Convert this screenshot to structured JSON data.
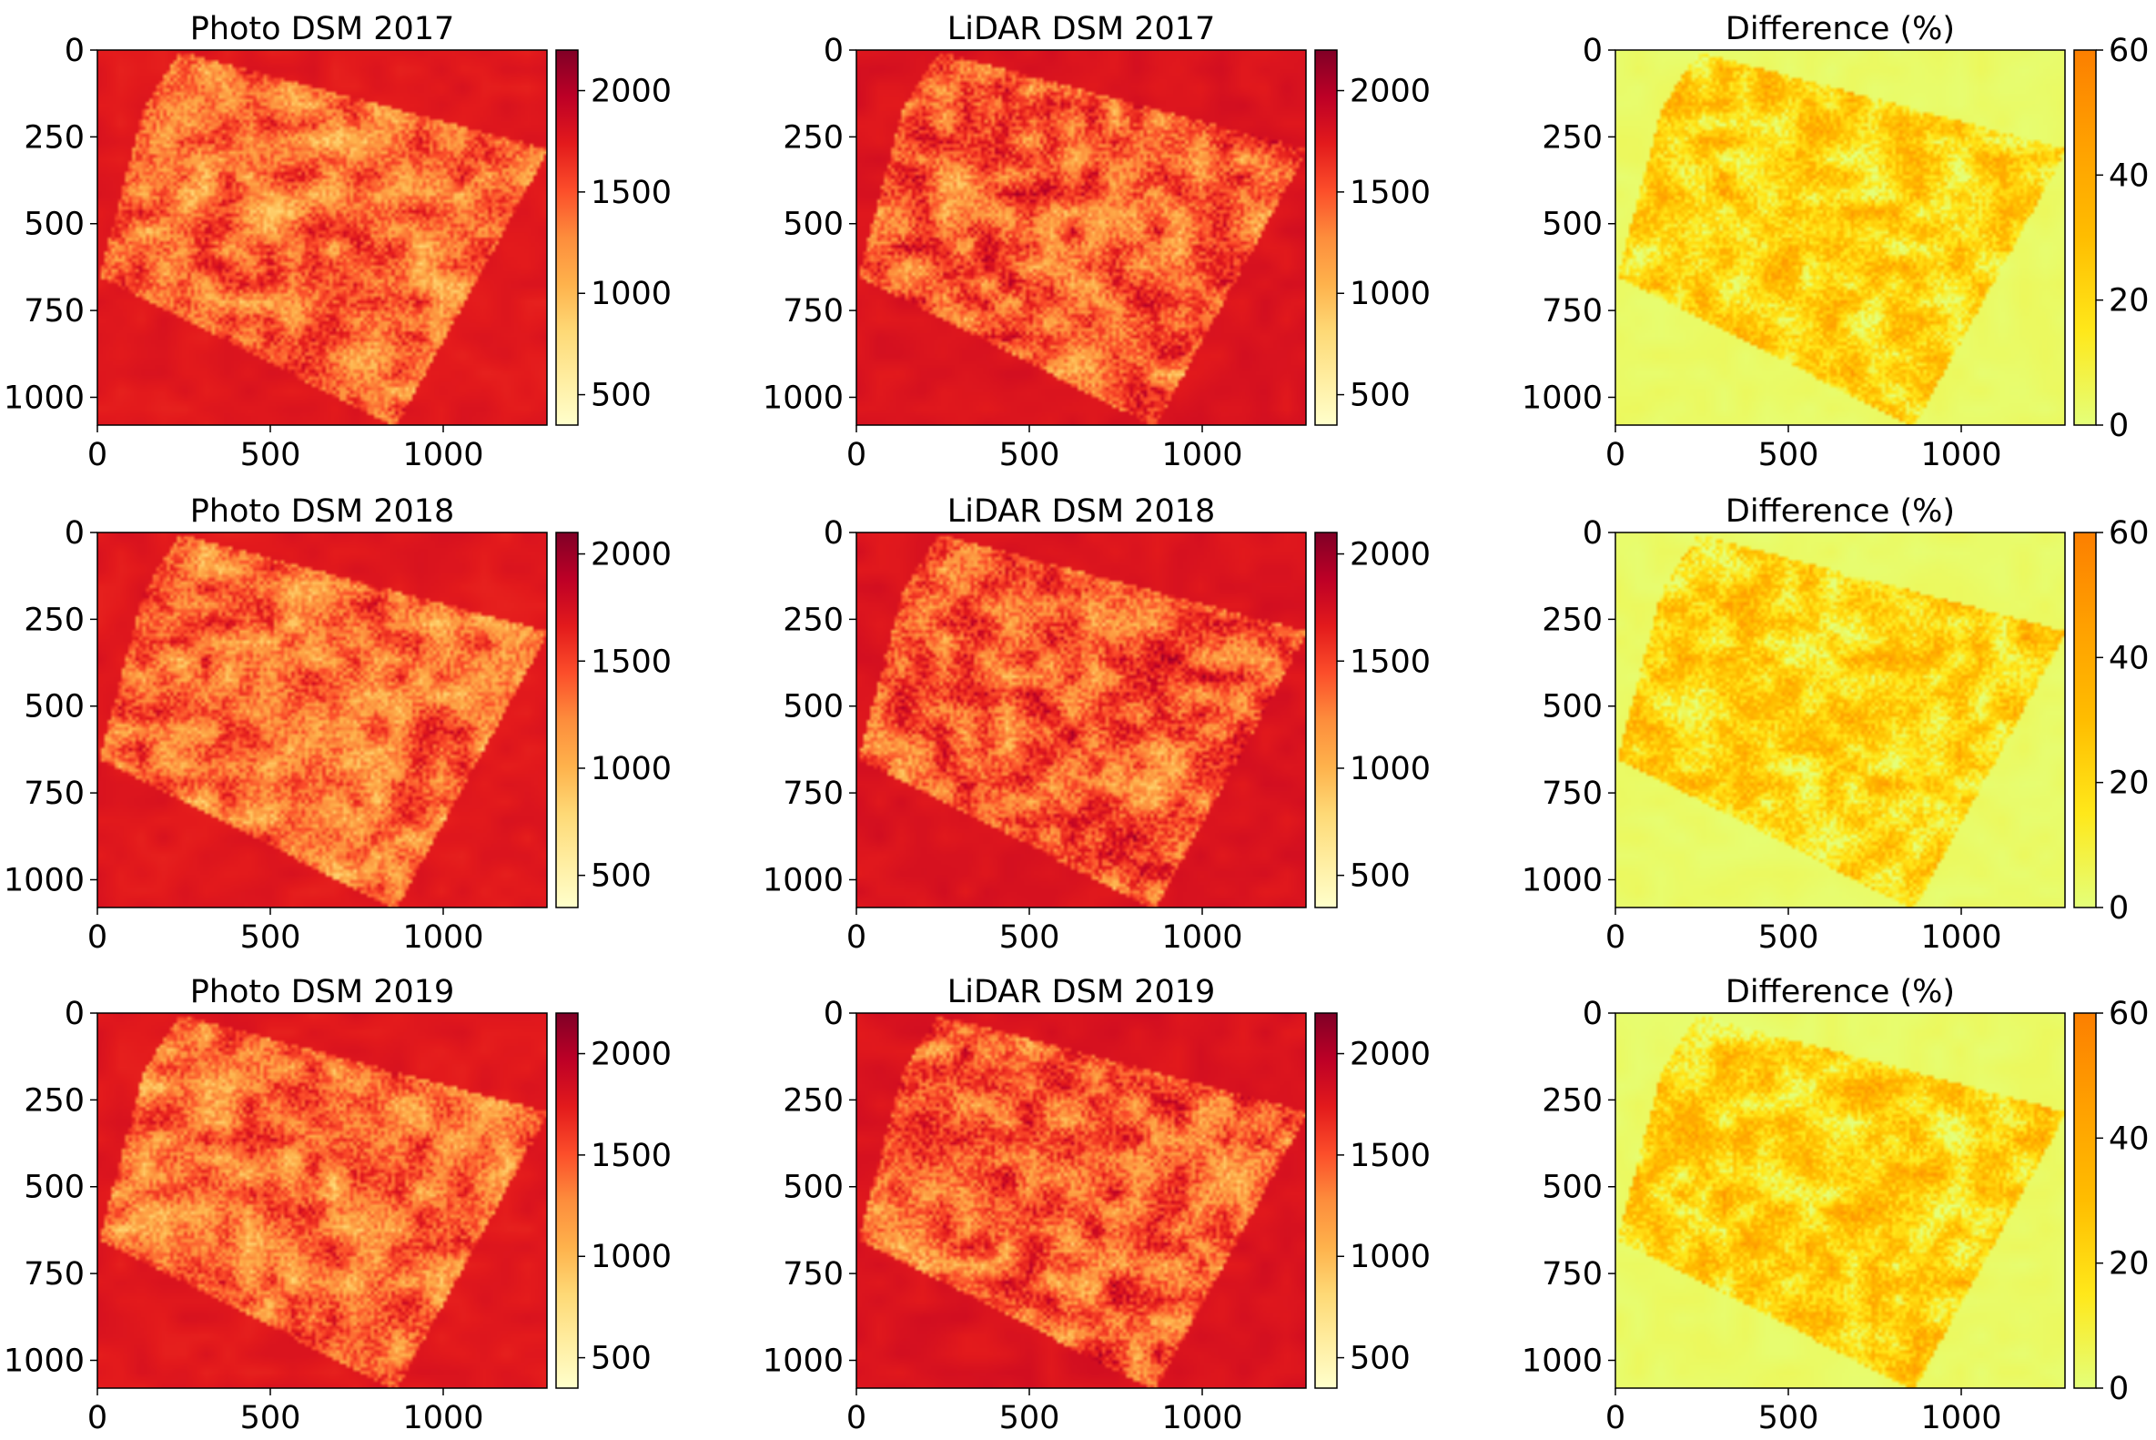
{
  "figure": {
    "colors": {
      "ylorrd_stops": [
        "#ffffcc",
        "#ffeda0",
        "#fed976",
        "#feb24c",
        "#fd8d3c",
        "#fc4e2a",
        "#e31a1c",
        "#bd0026",
        "#800026"
      ],
      "wistia_stops": [
        "#e4ff7a",
        "#ffe81a",
        "#ffbd00",
        "#ffa000",
        "#fc7f00"
      ]
    }
  },
  "chart_data": [
    {
      "type": "heatmap",
      "title": "Photo DSM 2017",
      "colormap": "YlOrRd",
      "xlim": [
        0,
        1300
      ],
      "ylim": [
        1080,
        0
      ],
      "xticks": [
        "0",
        "500",
        "1000"
      ],
      "xtick_values": [
        0,
        500,
        1000
      ],
      "yticks": [
        "0",
        "250",
        "500",
        "750",
        "1000"
      ],
      "ytick_values": [
        0,
        250,
        500,
        750,
        1000
      ],
      "colorbar": {
        "min": 350,
        "max": 2200,
        "ticks": [
          "500",
          "1000",
          "1500",
          "2000"
        ],
        "tick_values": [
          500,
          1000,
          1500,
          2000
        ]
      },
      "image": {
        "outside_level": 0.76,
        "inside_base": 0.55,
        "variation": 0.42,
        "shape": "rotated-rectangle",
        "seed": 11
      }
    },
    {
      "type": "heatmap",
      "title": "LiDAR DSM 2017",
      "colormap": "YlOrRd",
      "xlim": [
        0,
        1300
      ],
      "ylim": [
        1080,
        0
      ],
      "xticks": [
        "0",
        "500",
        "1000"
      ],
      "xtick_values": [
        0,
        500,
        1000
      ],
      "yticks": [
        "0",
        "250",
        "500",
        "750",
        "1000"
      ],
      "ytick_values": [
        0,
        250,
        500,
        750,
        1000
      ],
      "colorbar": {
        "min": 350,
        "max": 2200,
        "ticks": [
          "500",
          "1000",
          "1500",
          "2000"
        ],
        "tick_values": [
          500,
          1000,
          1500,
          2000
        ]
      },
      "image": {
        "outside_level": 0.78,
        "inside_base": 0.6,
        "variation": 0.45,
        "shape": "rotated-rectangle",
        "seed": 23
      }
    },
    {
      "type": "heatmap",
      "title": "Difference (%)",
      "colormap": "Wistia",
      "xlim": [
        0,
        1300
      ],
      "ylim": [
        1080,
        0
      ],
      "xticks": [
        "0",
        "500",
        "1000"
      ],
      "xtick_values": [
        0,
        500,
        1000
      ],
      "yticks": [
        "0",
        "250",
        "500",
        "750",
        "1000"
      ],
      "ytick_values": [
        0,
        250,
        500,
        750,
        1000
      ],
      "colorbar": {
        "min": 0,
        "max": 60,
        "ticks": [
          "0",
          "20",
          "40",
          "60"
        ],
        "tick_values": [
          0,
          20,
          40,
          60
        ]
      },
      "image": {
        "outside_level": 0.05,
        "inside_base": 0.35,
        "variation": 0.65,
        "shape": "rotated-rectangle",
        "seed": 37
      }
    },
    {
      "type": "heatmap",
      "title": "Photo DSM 2018",
      "colormap": "YlOrRd",
      "xlim": [
        0,
        1300
      ],
      "ylim": [
        1080,
        0
      ],
      "xticks": [
        "0",
        "500",
        "1000"
      ],
      "xtick_values": [
        0,
        500,
        1000
      ],
      "yticks": [
        "0",
        "250",
        "500",
        "750",
        "1000"
      ],
      "ytick_values": [
        0,
        250,
        500,
        750,
        1000
      ],
      "colorbar": {
        "min": 350,
        "max": 2100,
        "ticks": [
          "500",
          "1000",
          "1500",
          "2000"
        ],
        "tick_values": [
          500,
          1000,
          1500,
          2000
        ]
      },
      "image": {
        "outside_level": 0.76,
        "inside_base": 0.55,
        "variation": 0.42,
        "shape": "rotated-rectangle",
        "seed": 41
      }
    },
    {
      "type": "heatmap",
      "title": "LiDAR DSM 2018",
      "colormap": "YlOrRd",
      "xlim": [
        0,
        1300
      ],
      "ylim": [
        1080,
        0
      ],
      "xticks": [
        "0",
        "500",
        "1000"
      ],
      "xtick_values": [
        0,
        500,
        1000
      ],
      "yticks": [
        "0",
        "250",
        "500",
        "750",
        "1000"
      ],
      "ytick_values": [
        0,
        250,
        500,
        750,
        1000
      ],
      "colorbar": {
        "min": 350,
        "max": 2100,
        "ticks": [
          "500",
          "1000",
          "1500",
          "2000"
        ],
        "tick_values": [
          500,
          1000,
          1500,
          2000
        ]
      },
      "image": {
        "outside_level": 0.78,
        "inside_base": 0.6,
        "variation": 0.45,
        "shape": "rotated-rectangle",
        "seed": 53
      }
    },
    {
      "type": "heatmap",
      "title": "Difference (%)",
      "colormap": "Wistia",
      "xlim": [
        0,
        1300
      ],
      "ylim": [
        1080,
        0
      ],
      "xticks": [
        "0",
        "500",
        "1000"
      ],
      "xtick_values": [
        0,
        500,
        1000
      ],
      "yticks": [
        "0",
        "250",
        "500",
        "750",
        "1000"
      ],
      "ytick_values": [
        0,
        250,
        500,
        750,
        1000
      ],
      "colorbar": {
        "min": 0,
        "max": 60,
        "ticks": [
          "0",
          "20",
          "40",
          "60"
        ],
        "tick_values": [
          0,
          20,
          40,
          60
        ]
      },
      "image": {
        "outside_level": 0.05,
        "inside_base": 0.35,
        "variation": 0.65,
        "shape": "rotated-rectangle",
        "seed": 67
      }
    },
    {
      "type": "heatmap",
      "title": "Photo DSM 2019",
      "colormap": "YlOrRd",
      "xlim": [
        0,
        1300
      ],
      "ylim": [
        1080,
        0
      ],
      "xticks": [
        "0",
        "500",
        "1000"
      ],
      "xtick_values": [
        0,
        500,
        1000
      ],
      "yticks": [
        "0",
        "250",
        "500",
        "750",
        "1000"
      ],
      "ytick_values": [
        0,
        250,
        500,
        750,
        1000
      ],
      "colorbar": {
        "min": 350,
        "max": 2200,
        "ticks": [
          "500",
          "1000",
          "1500",
          "2000"
        ],
        "tick_values": [
          500,
          1000,
          1500,
          2000
        ]
      },
      "image": {
        "outside_level": 0.76,
        "inside_base": 0.55,
        "variation": 0.42,
        "shape": "rotated-rectangle",
        "seed": 71
      }
    },
    {
      "type": "heatmap",
      "title": "LiDAR DSM 2019",
      "colormap": "YlOrRd",
      "xlim": [
        0,
        1300
      ],
      "ylim": [
        1080,
        0
      ],
      "xticks": [
        "0",
        "500",
        "1000"
      ],
      "xtick_values": [
        0,
        500,
        1000
      ],
      "yticks": [
        "0",
        "250",
        "500",
        "750",
        "1000"
      ],
      "ytick_values": [
        0,
        250,
        500,
        750,
        1000
      ],
      "colorbar": {
        "min": 350,
        "max": 2200,
        "ticks": [
          "500",
          "1000",
          "1500",
          "2000"
        ],
        "tick_values": [
          500,
          1000,
          1500,
          2000
        ]
      },
      "image": {
        "outside_level": 0.78,
        "inside_base": 0.6,
        "variation": 0.45,
        "shape": "rotated-rectangle",
        "seed": 83
      }
    },
    {
      "type": "heatmap",
      "title": "Difference (%)",
      "colormap": "Wistia",
      "xlim": [
        0,
        1300
      ],
      "ylim": [
        1080,
        0
      ],
      "xticks": [
        "0",
        "500",
        "1000"
      ],
      "xtick_values": [
        0,
        500,
        1000
      ],
      "yticks": [
        "0",
        "250",
        "500",
        "750",
        "1000"
      ],
      "ytick_values": [
        0,
        250,
        500,
        750,
        1000
      ],
      "colorbar": {
        "min": 0,
        "max": 60,
        "ticks": [
          "0",
          "20",
          "40",
          "60"
        ],
        "tick_values": [
          0,
          20,
          40,
          60
        ]
      },
      "image": {
        "outside_level": 0.05,
        "inside_base": 0.35,
        "variation": 0.65,
        "shape": "rotated-rectangle",
        "seed": 97
      }
    }
  ]
}
